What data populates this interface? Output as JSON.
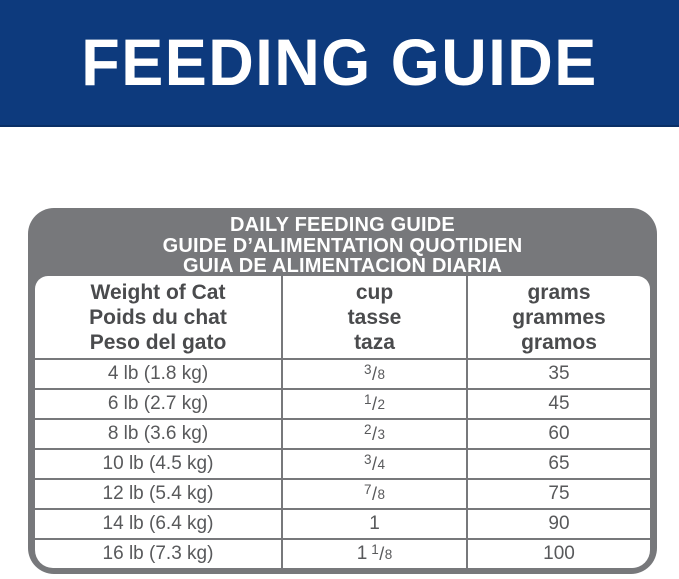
{
  "banner": {
    "title": "FEEDING GUIDE"
  },
  "table": {
    "header_lines": [
      "DAILY FEEDING GUIDE",
      "GUIDE D’ALIMENTATION QUOTIDIEN",
      "GUIA DE ALIMENTACION DIARIA"
    ],
    "columns": [
      {
        "lines": [
          "Weight of Cat",
          "Poids du chat",
          "Peso del gato"
        ]
      },
      {
        "lines": [
          "cup",
          "tasse",
          "taza"
        ]
      },
      {
        "lines": [
          "grams",
          "grammes",
          "gramos"
        ]
      }
    ],
    "rows": [
      {
        "weight": "4 lb (1.8 kg)",
        "cup": "3/8",
        "grams": "35"
      },
      {
        "weight": "6 lb (2.7 kg)",
        "cup": "1/2",
        "grams": "45"
      },
      {
        "weight": "8 lb (3.6 kg)",
        "cup": "2/3",
        "grams": "60"
      },
      {
        "weight": "10 lb (4.5 kg)",
        "cup": "3/4",
        "grams": "65"
      },
      {
        "weight": "12 lb (5.4 kg)",
        "cup": "7/8",
        "grams": "75"
      },
      {
        "weight": "14 lb (6.4 kg)",
        "cup": "1",
        "grams": "90"
      },
      {
        "weight": "16 lb (7.3 kg)",
        "cup": "1 1/8",
        "grams": "100"
      }
    ]
  },
  "colors": {
    "banner_blue": "#0d3a7d",
    "table_gray": "#77787b",
    "band_text": "#ffffff",
    "column_header_text": "#4a4b4d",
    "cell_text": "#58595b"
  }
}
